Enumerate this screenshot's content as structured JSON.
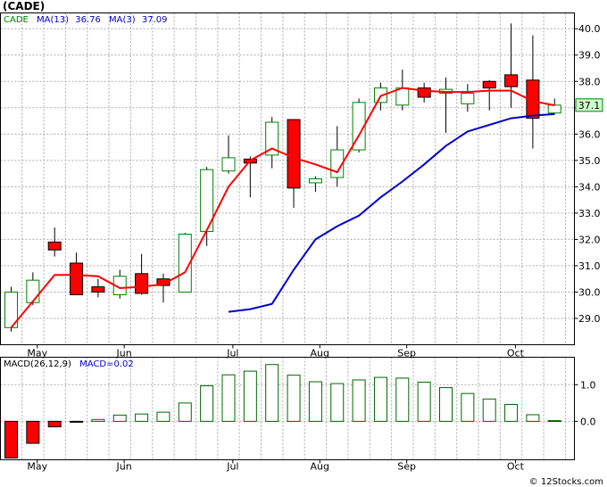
{
  "ticker_label": "(CADE)",
  "watermark": "© 12Stocks.com",
  "chart_data": [
    {
      "type": "candlestick",
      "legend": [
        {
          "text": "CADE",
          "color": "#008000"
        },
        {
          "text": "MA(13)",
          "color": "#0000cc"
        },
        {
          "text": "36.76",
          "color": "#0000cc"
        },
        {
          "text": "MA(3)",
          "color": "#0000cc"
        },
        {
          "text": "37.09",
          "color": "#0000cc"
        }
      ],
      "last_price_label": "37.1",
      "last_price": 37.1,
      "ylim": [
        28.0,
        40.6
      ],
      "y_ticks": [
        29.0,
        30.0,
        31.0,
        32.0,
        33.0,
        34.0,
        35.0,
        36.0,
        37.0,
        38.0,
        39.0,
        40.0
      ],
      "y_tick_labels": [
        "29.0",
        "30.0",
        "31.0",
        "32.0",
        "33.0",
        "34.0",
        "35.0",
        "36.0",
        "37.0",
        "38.0",
        "39.0",
        "40.0"
      ],
      "x_month_labels": [
        "May",
        "Jun",
        "Jul",
        "Aug",
        "Sep",
        "Oct"
      ],
      "x_month_index": [
        1.2,
        5.2,
        10.2,
        14.2,
        18.2,
        23.2
      ],
      "up_color": "#008000",
      "down_color": "#ff0000",
      "candles": [
        {
          "o": 28.65,
          "h": 30.2,
          "l": 28.5,
          "c": 30.0
        },
        {
          "o": 29.6,
          "h": 30.75,
          "l": 29.5,
          "c": 30.45
        },
        {
          "o": 31.9,
          "h": 32.45,
          "l": 31.35,
          "c": 31.6
        },
        {
          "o": 31.1,
          "h": 31.5,
          "l": 29.9,
          "c": 29.9
        },
        {
          "o": 30.2,
          "h": 30.5,
          "l": 29.8,
          "c": 30.0
        },
        {
          "o": 29.9,
          "h": 30.85,
          "l": 29.75,
          "c": 30.6
        },
        {
          "o": 30.7,
          "h": 31.45,
          "l": 29.9,
          "c": 29.95
        },
        {
          "o": 30.5,
          "h": 30.7,
          "l": 29.6,
          "c": 30.25
        },
        {
          "o": 30.0,
          "h": 32.25,
          "l": 30.0,
          "c": 32.2
        },
        {
          "o": 32.3,
          "h": 34.75,
          "l": 31.75,
          "c": 34.65
        },
        {
          "o": 34.6,
          "h": 35.95,
          "l": 34.5,
          "c": 35.1
        },
        {
          "o": 35.05,
          "h": 35.15,
          "l": 33.6,
          "c": 34.9
        },
        {
          "o": 35.2,
          "h": 36.65,
          "l": 34.7,
          "c": 36.45
        },
        {
          "o": 36.55,
          "h": 36.55,
          "l": 33.2,
          "c": 33.95
        },
        {
          "o": 34.15,
          "h": 34.4,
          "l": 33.8,
          "c": 34.3
        },
        {
          "o": 34.35,
          "h": 36.3,
          "l": 34.0,
          "c": 35.4
        },
        {
          "o": 35.4,
          "h": 37.35,
          "l": 35.3,
          "c": 37.2
        },
        {
          "o": 37.2,
          "h": 37.95,
          "l": 36.9,
          "c": 37.75
        },
        {
          "o": 37.1,
          "h": 38.45,
          "l": 36.9,
          "c": 37.75
        },
        {
          "o": 37.75,
          "h": 37.95,
          "l": 37.2,
          "c": 37.4
        },
        {
          "o": 37.55,
          "h": 38.15,
          "l": 36.05,
          "c": 37.7
        },
        {
          "o": 37.15,
          "h": 37.9,
          "l": 36.85,
          "c": 37.55
        },
        {
          "o": 38.0,
          "h": 38.05,
          "l": 36.9,
          "c": 37.75
        },
        {
          "o": 38.25,
          "h": 40.2,
          "l": 37.0,
          "c": 37.8
        },
        {
          "o": 38.05,
          "h": 39.75,
          "l": 35.45,
          "c": 36.6
        },
        {
          "o": 36.8,
          "h": 37.35,
          "l": 36.75,
          "c": 37.1
        }
      ],
      "ma13": [
        null,
        null,
        null,
        null,
        null,
        null,
        29.25,
        29.35,
        29.55,
        30.85,
        32.0,
        32.5,
        32.9,
        33.6,
        34.2,
        34.85,
        35.55,
        36.1,
        36.35,
        36.6,
        36.7,
        36.76
      ],
      "ma13_offset": 4,
      "ma3": [
        28.65,
        29.65,
        30.65,
        30.65,
        30.6,
        30.15,
        30.2,
        30.3,
        30.75,
        32.35,
        34.0,
        35.0,
        35.45,
        35.1,
        34.85,
        34.55,
        35.95,
        37.45,
        37.75,
        37.65,
        37.6,
        37.6,
        37.65,
        37.65,
        37.25,
        37.09
      ]
    },
    {
      "type": "bar",
      "legend": [
        {
          "text": "MACD(26,12,9)",
          "color": "#000000"
        },
        {
          "text": "MACD=0.02",
          "color": "#0000cc"
        }
      ],
      "ylim": [
        -1.05,
        1.75
      ],
      "y_ticks": [
        0.0,
        1.0
      ],
      "y_tick_labels": [
        "0.0",
        "1.0"
      ],
      "x_month_labels": [
        "May",
        "Jun",
        "Jul",
        "Aug",
        "Sep",
        "Oct"
      ],
      "values": [
        -1.0,
        -0.6,
        -0.15,
        -0.02,
        0.05,
        0.17,
        0.2,
        0.25,
        0.5,
        0.97,
        1.27,
        1.37,
        1.55,
        1.26,
        1.08,
        1.03,
        1.13,
        1.2,
        1.18,
        1.07,
        0.92,
        0.76,
        0.61,
        0.46,
        0.18,
        0.02
      ],
      "pos_color": "#006600",
      "neg_color": "#ff0000"
    }
  ]
}
